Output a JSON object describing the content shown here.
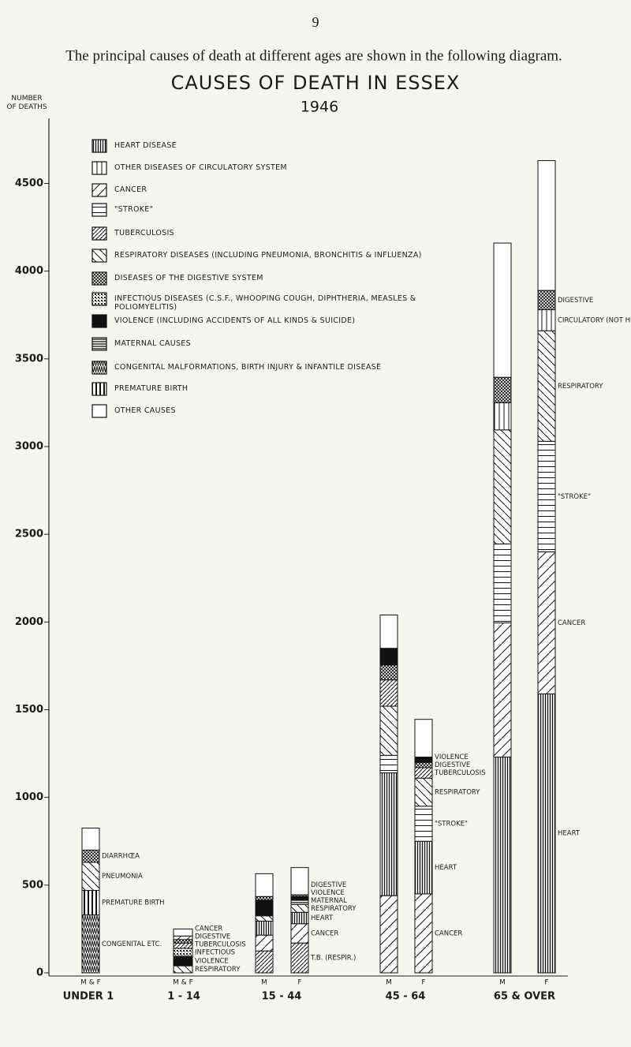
{
  "page_number": "9",
  "intro": "The principal causes of death at different ages are shown in the following diagram.",
  "chart_data": {
    "type": "stacked_bar",
    "title": "CAUSES OF DEATH IN ESSEX",
    "subtitle": "1946",
    "y_label": "NUMBER OF DEATHS",
    "categories": [
      "M & F",
      "M & F",
      "M",
      "F",
      "M",
      "F",
      "M",
      "F"
    ],
    "group_labels": [
      "UNDER 1",
      "1 - 14",
      "15 - 44",
      "45 - 64",
      "65 & OVER"
    ],
    "ylim": [
      0,
      4700
    ],
    "yticks": [
      0,
      500,
      1000,
      1500,
      2000,
      2500,
      3000,
      3500,
      4000,
      4500
    ],
    "grid": false,
    "series": [
      {
        "name": "HEART DISEASE",
        "values": [
          null,
          null,
          80,
          65,
          700,
          300,
          1230,
          1590
        ]
      },
      {
        "name": "OTHER DISEASES OF CIRCULATORY SYSTEM",
        "values": [
          null,
          null,
          null,
          null,
          null,
          null,
          155,
          120
        ]
      },
      {
        "name": "CANCER",
        "values": [
          null,
          20,
          90,
          110,
          440,
          450,
          765,
          810
        ]
      },
      {
        "name": "\"STROKE\"",
        "values": [
          null,
          null,
          null,
          null,
          100,
          200,
          450,
          630
        ]
      },
      {
        "name": "TUBERCULOSIS",
        "values": [
          null,
          30,
          125,
          170,
          150,
          60,
          null,
          null
        ]
      },
      {
        "name": "RESPIRATORY DISEASES (INCLUDING PNEUMONIA, BRONCHITIS & INFLUENZA)",
        "values": [
          160,
          40,
          30,
          45,
          280,
          160,
          650,
          630
        ]
      },
      {
        "name": "DISEASES OF THE DIGESTIVE SYSTEM",
        "values": [
          70,
          20,
          20,
          10,
          85,
          30,
          145,
          110
        ]
      },
      {
        "name": "INFECTIOUS DISEASES (C.S.F., WHOOPING COUGH, DIPHTHERIA, MEASLES & POLIOMYELITIS)",
        "values": [
          null,
          45,
          null,
          null,
          null,
          null,
          null,
          null
        ]
      },
      {
        "name": "VIOLENCE (INCLUDING ACCIDENTS OF ALL KINDS & SUICIDE)",
        "values": [
          null,
          55,
          90,
          20,
          95,
          30,
          null,
          null
        ]
      },
      {
        "name": "MATERNAL CAUSES",
        "values": [
          null,
          null,
          null,
          25,
          null,
          null,
          null,
          null
        ]
      },
      {
        "name": "CONGENITAL MALFORMATIONS, BIRTH INJURY & INFANTILE DISEASE",
        "values": [
          330,
          null,
          null,
          null,
          null,
          null,
          null,
          null
        ]
      },
      {
        "name": "PREMATURE BIRTH",
        "values": [
          140,
          null,
          null,
          null,
          null,
          null,
          null,
          null
        ]
      },
      {
        "name": "OTHER CAUSES",
        "values": [
          125,
          40,
          130,
          155,
          190,
          215,
          765,
          740
        ]
      }
    ],
    "annotations": [
      "DIARRHŒA",
      "PNEUMONIA",
      "PREMATURE BIRTH",
      "CONGENITAL ETC.",
      "CANCER",
      "DIGESTIVE",
      "TUBERCULOSIS",
      "INFECTIOUS",
      "VIOLENCE",
      "RESPIRATORY",
      "DIGESTIVE",
      "VIOLENCE",
      "MATERNAL",
      "RESPIRATORY",
      "HEART",
      "CANCER",
      "T.B. (RESPIR.)",
      "VIOLENCE",
      "DIGESTIVE",
      "TUBERCULOSIS",
      "RESPIRATORY",
      "\"STROKE\"",
      "HEART",
      "CANCER",
      "DIGESTIVE",
      "CIRCULATORY (NOT HEART)",
      "RESPIRATORY",
      "\"STROKE\"",
      "CANCER",
      "HEART"
    ]
  }
}
